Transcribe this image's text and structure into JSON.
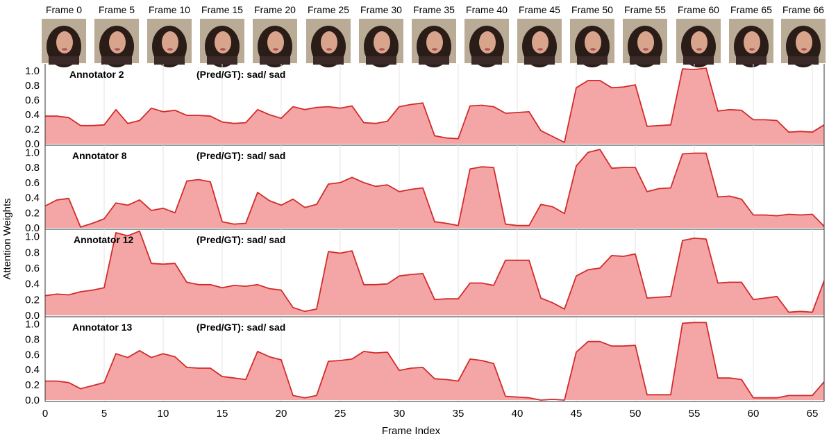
{
  "frames": {
    "labels": [
      "Frame 0",
      "Frame 5",
      "Frame 10",
      "Frame 15",
      "Frame 20",
      "Frame 25",
      "Frame 30",
      "Frame 35",
      "Frame 40",
      "Frame 45",
      "Frame 50",
      "Frame 55",
      "Frame 60",
      "Frame 65",
      "Frame 66"
    ],
    "indices": [
      0,
      5,
      10,
      15,
      20,
      25,
      30,
      35,
      40,
      45,
      50,
      55,
      60,
      65,
      66
    ],
    "thumbnail_colors": {
      "background": "#b9ab95",
      "hair": "#2a1c16",
      "skin": "#d9a48c",
      "lips": "#b0505a",
      "clothes": "#3b2a28"
    }
  },
  "chart_data": {
    "type": "area",
    "xlabel": "Frame Index",
    "ylabel": "Attention Weights",
    "xlim": [
      0,
      66
    ],
    "xticks": [
      0,
      5,
      10,
      15,
      20,
      25,
      30,
      35,
      40,
      45,
      50,
      55,
      60,
      65
    ],
    "ylim": [
      0,
      1.05
    ],
    "yticks": [
      "0.0",
      "0.2",
      "0.4",
      "0.6",
      "0.8",
      "1.0"
    ],
    "grid": true,
    "colors": {
      "line": "#d42a2a",
      "fill": "#f4a6a6",
      "grid": "#e3e3e3"
    },
    "series": [
      {
        "name": "Annotator 2",
        "prediction": "(Pred/GT): sad/ sad",
        "values": [
          0.38,
          0.38,
          0.36,
          0.25,
          0.25,
          0.26,
          0.47,
          0.28,
          0.32,
          0.49,
          0.44,
          0.46,
          0.39,
          0.39,
          0.38,
          0.3,
          0.28,
          0.29,
          0.47,
          0.4,
          0.35,
          0.51,
          0.47,
          0.5,
          0.51,
          0.49,
          0.52,
          0.29,
          0.28,
          0.31,
          0.51,
          0.54,
          0.56,
          0.11,
          0.08,
          0.07,
          0.52,
          0.53,
          0.51,
          0.42,
          0.43,
          0.44,
          0.18,
          0.1,
          0.02,
          0.77,
          0.87,
          0.87,
          0.77,
          0.78,
          0.81,
          0.24,
          0.25,
          0.26,
          1.03,
          1.02,
          1.04,
          0.45,
          0.47,
          0.46,
          0.33,
          0.33,
          0.32,
          0.16,
          0.17,
          0.16,
          0.26
        ]
      },
      {
        "name": "Annotator 8",
        "prediction": "(Pred/GT): sad/ sad",
        "values": [
          0.29,
          0.37,
          0.39,
          0.01,
          0.06,
          0.12,
          0.33,
          0.3,
          0.37,
          0.23,
          0.26,
          0.2,
          0.62,
          0.64,
          0.61,
          0.08,
          0.05,
          0.06,
          0.47,
          0.36,
          0.3,
          0.38,
          0.27,
          0.31,
          0.58,
          0.6,
          0.67,
          0.6,
          0.55,
          0.57,
          0.48,
          0.51,
          0.53,
          0.08,
          0.06,
          0.03,
          0.78,
          0.81,
          0.8,
          0.05,
          0.03,
          0.03,
          0.31,
          0.28,
          0.19,
          0.82,
          1.0,
          1.04,
          0.79,
          0.8,
          0.8,
          0.48,
          0.52,
          0.53,
          0.98,
          0.99,
          0.99,
          0.41,
          0.42,
          0.38,
          0.17,
          0.17,
          0.16,
          0.18,
          0.17,
          0.18,
          0.02
        ]
      },
      {
        "name": "Annotator 12",
        "prediction": "(Pred/GT): sad/ sad",
        "values": [
          0.25,
          0.27,
          0.26,
          0.3,
          0.32,
          0.35,
          1.05,
          1.01,
          1.07,
          0.66,
          0.65,
          0.66,
          0.42,
          0.39,
          0.39,
          0.35,
          0.38,
          0.37,
          0.39,
          0.34,
          0.32,
          0.1,
          0.05,
          0.08,
          0.81,
          0.79,
          0.82,
          0.39,
          0.39,
          0.4,
          0.5,
          0.52,
          0.53,
          0.2,
          0.21,
          0.21,
          0.41,
          0.41,
          0.38,
          0.7,
          0.7,
          0.7,
          0.22,
          0.16,
          0.08,
          0.5,
          0.58,
          0.6,
          0.76,
          0.75,
          0.78,
          0.22,
          0.23,
          0.24,
          0.95,
          0.98,
          0.97,
          0.41,
          0.42,
          0.42,
          0.2,
          0.22,
          0.24,
          0.04,
          0.05,
          0.04,
          0.44
        ]
      },
      {
        "name": "Annotator 13",
        "prediction": "(Pred/GT): sad/ sad",
        "values": [
          0.25,
          0.25,
          0.23,
          0.15,
          0.19,
          0.23,
          0.61,
          0.56,
          0.65,
          0.56,
          0.61,
          0.57,
          0.43,
          0.42,
          0.42,
          0.31,
          0.29,
          0.27,
          0.64,
          0.57,
          0.53,
          0.06,
          0.03,
          0.06,
          0.51,
          0.52,
          0.54,
          0.64,
          0.62,
          0.63,
          0.39,
          0.42,
          0.43,
          0.28,
          0.27,
          0.25,
          0.54,
          0.52,
          0.48,
          0.05,
          0.04,
          0.03,
          0.0,
          0.01,
          0.0,
          0.63,
          0.77,
          0.77,
          0.71,
          0.71,
          0.72,
          0.07,
          0.07,
          0.07,
          1.01,
          1.02,
          1.02,
          0.29,
          0.29,
          0.27,
          0.03,
          0.03,
          0.03,
          0.06,
          0.06,
          0.06,
          0.24
        ]
      }
    ]
  }
}
